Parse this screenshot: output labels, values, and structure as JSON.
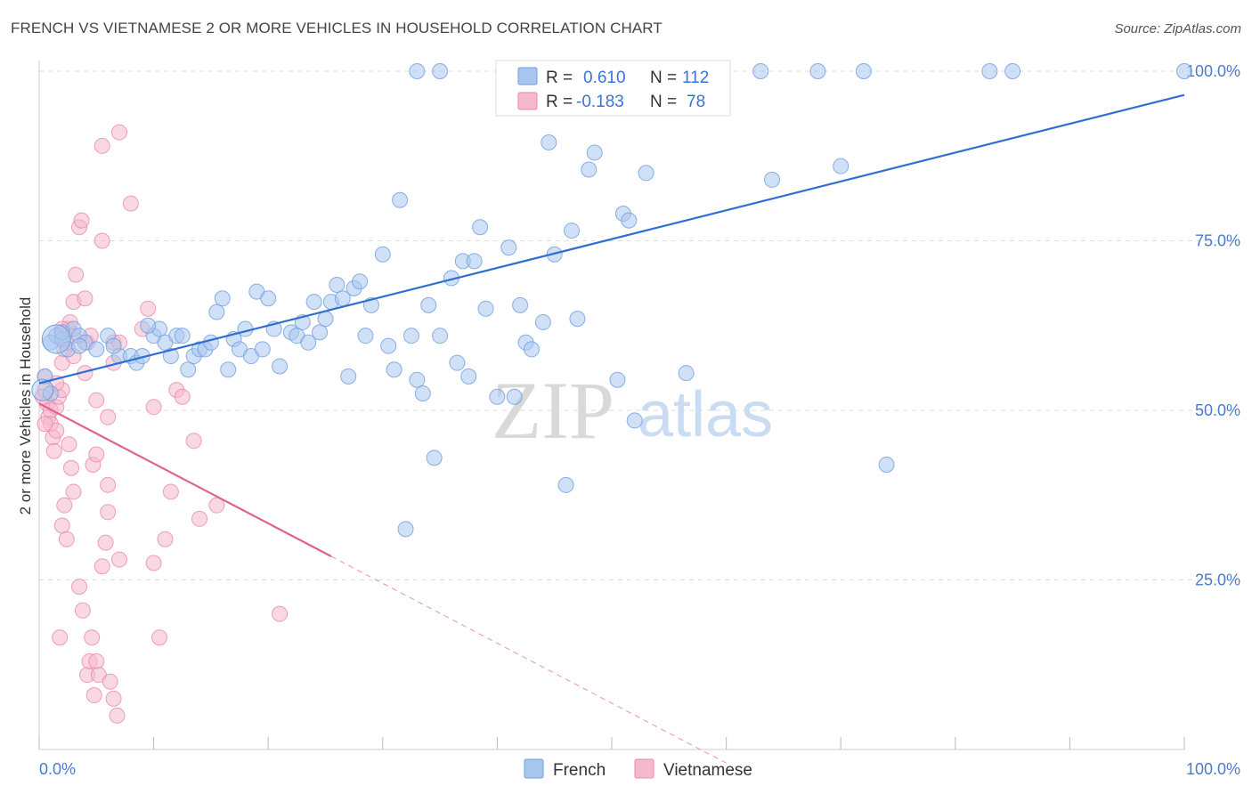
{
  "title": "FRENCH VS VIETNAMESE 2 OR MORE VEHICLES IN HOUSEHOLD CORRELATION CHART",
  "source": "Source: ZipAtlas.com",
  "watermark": {
    "zip": "ZIP",
    "atlas": "atlas"
  },
  "colors": {
    "french_fill": "#a9c6ee",
    "french_stroke": "#6e9de0",
    "french_line": "#2f6fd0",
    "vietnamese_fill": "#f6b8cc",
    "vietnamese_stroke": "#e98aaa",
    "vietnamese_line": "#e0628f",
    "tick_label": "#4a7bd0",
    "grid": "#dddddd"
  },
  "legend": {
    "rows": [
      {
        "r_label": "R =",
        "r_value": "0.610",
        "n_label": "N =",
        "n_value": "112"
      },
      {
        "r_label": "R =",
        "r_value": "-0.183",
        "n_label": "N =",
        "n_value": "78"
      }
    ]
  },
  "chart_data": {
    "type": "scatter",
    "title": "FRENCH VS VIETNAMESE 2 OR MORE VEHICLES IN HOUSEHOLD CORRELATION CHART",
    "xlabel": "",
    "ylabel": "2 or more Vehicles in Household",
    "xlim": [
      0,
      100
    ],
    "ylim": [
      0,
      100
    ],
    "x_tick_labels": [
      "0.0%",
      "100.0%"
    ],
    "y_tick_labels": [
      "25.0%",
      "50.0%",
      "75.0%",
      "100.0%"
    ],
    "y_ticks": [
      25,
      50,
      75,
      100
    ],
    "grid": true,
    "legend_position": "bottom-center",
    "series": [
      {
        "name": "French",
        "r": 0.61,
        "n": 112,
        "trend": {
          "x0": 0,
          "y0": 54,
          "x1": 100,
          "y1": 96.5,
          "solid_until": 100
        },
        "points": [
          [
            1,
            60
          ],
          [
            1.5,
            61
          ],
          [
            2,
            60.5
          ],
          [
            2.5,
            59
          ],
          [
            3,
            62
          ],
          [
            3.5,
            61
          ],
          [
            4,
            60
          ],
          [
            5,
            59
          ],
          [
            6,
            61
          ],
          [
            7,
            58
          ],
          [
            8,
            58
          ],
          [
            8.5,
            57
          ],
          [
            9,
            58
          ],
          [
            10,
            61
          ],
          [
            10.5,
            62
          ],
          [
            11,
            60
          ],
          [
            11.5,
            58
          ],
          [
            12,
            61
          ],
          [
            12.5,
            61
          ],
          [
            13,
            56
          ],
          [
            13.5,
            58
          ],
          [
            14,
            59
          ],
          [
            14.5,
            59
          ],
          [
            15,
            60
          ],
          [
            15.5,
            64.5
          ],
          [
            16,
            66.5
          ],
          [
            16.5,
            56
          ],
          [
            17,
            60.5
          ],
          [
            17.5,
            59
          ],
          [
            18,
            62
          ],
          [
            18.5,
            58
          ],
          [
            19,
            67.5
          ],
          [
            19.5,
            59
          ],
          [
            20,
            66.5
          ],
          [
            20.5,
            62
          ],
          [
            21,
            56.5
          ],
          [
            22,
            61.5
          ],
          [
            22.5,
            61
          ],
          [
            23,
            63
          ],
          [
            23.5,
            60
          ],
          [
            24,
            66
          ],
          [
            24.5,
            61.5
          ],
          [
            25,
            63.5
          ],
          [
            25.5,
            66
          ],
          [
            26,
            68.5
          ],
          [
            26.5,
            66.5
          ],
          [
            27,
            55
          ],
          [
            27.5,
            68
          ],
          [
            28,
            69
          ],
          [
            28.5,
            61
          ],
          [
            29,
            65.5
          ],
          [
            30,
            73
          ],
          [
            30.5,
            59.5
          ],
          [
            31,
            56
          ],
          [
            31.5,
            81
          ],
          [
            32.5,
            61
          ],
          [
            33,
            54.5
          ],
          [
            33.5,
            52.5
          ],
          [
            34,
            65.5
          ],
          [
            34.5,
            43
          ],
          [
            35,
            61
          ],
          [
            36,
            69.5
          ],
          [
            36.5,
            57
          ],
          [
            37,
            72
          ],
          [
            37.5,
            55
          ],
          [
            38,
            72
          ],
          [
            38.5,
            77
          ],
          [
            39,
            65
          ],
          [
            40,
            52
          ],
          [
            41,
            74
          ],
          [
            41.5,
            52
          ],
          [
            42,
            65.5
          ],
          [
            42.5,
            60
          ],
          [
            43,
            59
          ],
          [
            44,
            63
          ],
          [
            44.5,
            89.5
          ],
          [
            45,
            73
          ],
          [
            46,
            39
          ],
          [
            46.5,
            76.5
          ],
          [
            47,
            63.5
          ],
          [
            48,
            85.5
          ],
          [
            48.5,
            88
          ],
          [
            50.5,
            54.5
          ],
          [
            51,
            79
          ],
          [
            51.5,
            78
          ],
          [
            52,
            48.5
          ],
          [
            53,
            85
          ],
          [
            56.5,
            55.5
          ],
          [
            64,
            84
          ],
          [
            70,
            86
          ],
          [
            74,
            42
          ],
          [
            32,
            32.5
          ],
          [
            33,
            100
          ],
          [
            35,
            100
          ],
          [
            46,
            100
          ],
          [
            50,
            100
          ],
          [
            52,
            100
          ],
          [
            54,
            100
          ],
          [
            57,
            100
          ],
          [
            59,
            100
          ],
          [
            63,
            100
          ],
          [
            68,
            100
          ],
          [
            72,
            100
          ],
          [
            83,
            100
          ],
          [
            85,
            100
          ],
          [
            100,
            100
          ],
          [
            0.5,
            55
          ],
          [
            1,
            52.5
          ],
          [
            2,
            61.5
          ],
          [
            3.5,
            59.5
          ],
          [
            6.5,
            59.5
          ],
          [
            9.5,
            62.5
          ]
        ]
      },
      {
        "name": "Vietnamese",
        "r": -0.183,
        "n": 78,
        "trend": {
          "x0": 0,
          "y0": 51,
          "x1": 60,
          "y1": -2,
          "solid_until": 25.5
        },
        "points": [
          [
            0.5,
            55
          ],
          [
            0.5,
            53
          ],
          [
            0.7,
            51
          ],
          [
            0.8,
            49
          ],
          [
            1,
            50
          ],
          [
            1,
            48
          ],
          [
            1.2,
            46
          ],
          [
            1.3,
            44
          ],
          [
            1.5,
            47
          ],
          [
            1.5,
            50.5
          ],
          [
            1.7,
            52
          ],
          [
            2,
            57
          ],
          [
            2,
            53
          ],
          [
            2.2,
            59
          ],
          [
            2.3,
            60
          ],
          [
            2.5,
            62
          ],
          [
            2.7,
            63
          ],
          [
            3,
            66
          ],
          [
            3,
            58
          ],
          [
            3,
            61
          ],
          [
            3.2,
            70
          ],
          [
            3.5,
            77
          ],
          [
            3.7,
            78
          ],
          [
            4,
            66.5
          ],
          [
            4,
            55.5
          ],
          [
            4.2,
            60
          ],
          [
            4.5,
            61
          ],
          [
            4.7,
            42
          ],
          [
            5,
            43.5
          ],
          [
            5,
            51.5
          ],
          [
            5.5,
            89
          ],
          [
            5.5,
            75
          ],
          [
            6,
            49
          ],
          [
            6,
            39
          ],
          [
            6.5,
            60
          ],
          [
            6.5,
            57
          ],
          [
            7,
            91
          ],
          [
            7,
            60
          ],
          [
            8,
            80.5
          ],
          [
            9,
            62
          ],
          [
            9.5,
            65
          ],
          [
            10,
            50.5
          ],
          [
            10,
            27.5
          ],
          [
            10.5,
            16.5
          ],
          [
            11,
            31
          ],
          [
            11.5,
            38
          ],
          [
            12,
            53
          ],
          [
            12.5,
            52
          ],
          [
            13.5,
            45.5
          ],
          [
            14,
            34
          ],
          [
            15.5,
            36
          ],
          [
            21,
            20
          ],
          [
            1.8,
            16.5
          ],
          [
            2,
            33
          ],
          [
            2.2,
            36
          ],
          [
            2.4,
            31
          ],
          [
            2.6,
            45
          ],
          [
            2.8,
            41.5
          ],
          [
            3,
            38
          ],
          [
            3.5,
            24
          ],
          [
            3.8,
            20.5
          ],
          [
            4.2,
            11
          ],
          [
            4.4,
            13
          ],
          [
            4.6,
            16.5
          ],
          [
            4.8,
            8
          ],
          [
            5,
            13
          ],
          [
            5.2,
            11
          ],
          [
            5.5,
            27
          ],
          [
            5.8,
            30.5
          ],
          [
            6,
            35
          ],
          [
            6.2,
            10
          ],
          [
            6.5,
            7.5
          ],
          [
            6.8,
            5
          ],
          [
            7,
            28
          ],
          [
            0.3,
            52
          ],
          [
            0.5,
            48
          ],
          [
            1.5,
            54
          ],
          [
            2,
            62
          ]
        ]
      }
    ]
  }
}
